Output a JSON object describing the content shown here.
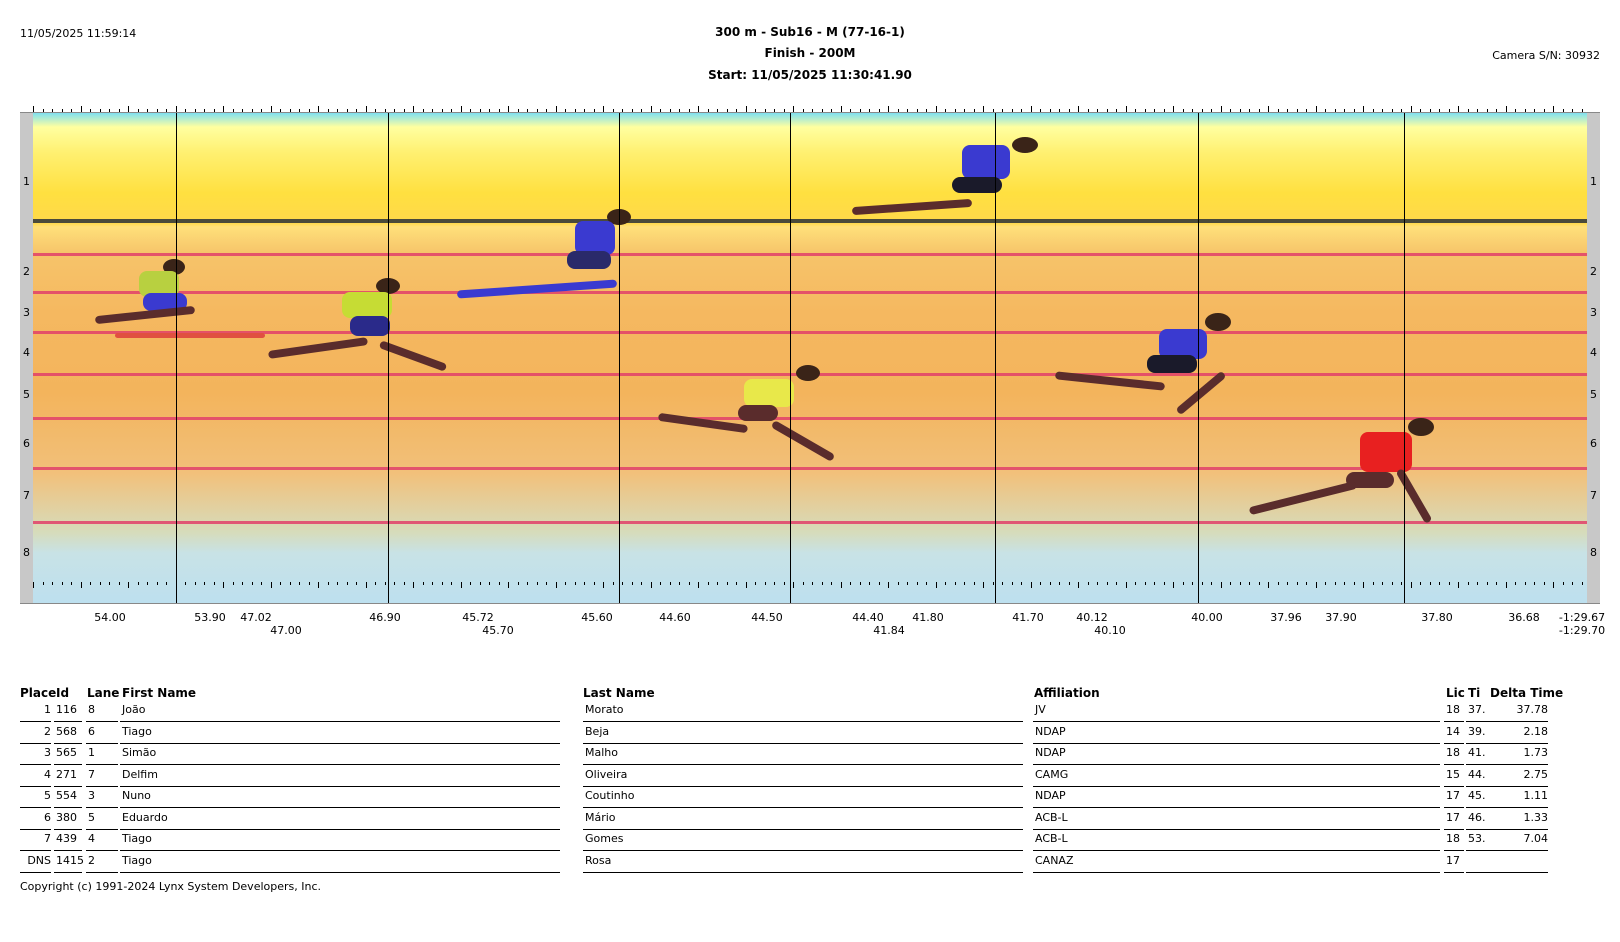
{
  "header": {
    "timestamp": "11/05/2025 11:59:14",
    "event_title": "300 m - Sub16 - M (77-16-1)",
    "finish_label": "Finish - 200M",
    "start_label": "Start: 11/05/2025 11:30:41.90",
    "camera": "Camera S/N: 30932"
  },
  "photo": {
    "lanes": [
      "1",
      "2",
      "3",
      "4",
      "5",
      "6",
      "7",
      "8"
    ],
    "time_labels_row1": [
      "54.00",
      "53.90",
      "47.02",
      "46.90",
      "45.72",
      "45.60",
      "44.60",
      "44.50",
      "44.40",
      "41.80",
      "41.70",
      "40.12",
      "40.00",
      "37.96",
      "37.90",
      "37.80",
      "36.68",
      "-1:29.67"
    ],
    "time_labels_row2": [
      "47.00",
      "45.70",
      "41.84",
      "40.10",
      "-1:29.70"
    ]
  },
  "results": {
    "columns": [
      "Place",
      "Id",
      "Lane",
      "First Name",
      "Last Name",
      "Affiliation",
      "Lic",
      "Ti",
      "Delta Time"
    ],
    "rows": [
      {
        "place": "1",
        "id": "116",
        "lane": "8",
        "first": "João",
        "last": "Morato",
        "aff": "JV",
        "lic": "18",
        "ti": "37.",
        "delta": "37.78"
      },
      {
        "place": "2",
        "id": "568",
        "lane": "6",
        "first": "Tiago",
        "last": "Beja",
        "aff": "NDAP",
        "lic": "14",
        "ti": "39.",
        "delta": "2.18"
      },
      {
        "place": "3",
        "id": "565",
        "lane": "1",
        "first": "Simão",
        "last": "Malho",
        "aff": "NDAP",
        "lic": "18",
        "ti": "41.",
        "delta": "1.73"
      },
      {
        "place": "4",
        "id": "271",
        "lane": "7",
        "first": "Delfim",
        "last": "Oliveira",
        "aff": "CAMG",
        "lic": "15",
        "ti": "44.",
        "delta": "2.75"
      },
      {
        "place": "5",
        "id": "554",
        "lane": "3",
        "first": "Nuno",
        "last": "Coutinho",
        "aff": "NDAP",
        "lic": "17",
        "ti": "45.",
        "delta": "1.11"
      },
      {
        "place": "6",
        "id": "380",
        "lane": "5",
        "first": "Eduardo",
        "last": "Mário",
        "aff": "ACB-L",
        "lic": "17",
        "ti": "46.",
        "delta": "1.33"
      },
      {
        "place": "7",
        "id": "439",
        "lane": "4",
        "first": "Tiago",
        "last": "Gomes",
        "aff": "ACB-L",
        "lic": "18",
        "ti": "53.",
        "delta": "7.04"
      },
      {
        "place": "DNS",
        "id": "1415",
        "lane": "2",
        "first": "Tiago",
        "last": "Rosa",
        "aff": "CANAZ",
        "lic": "17",
        "ti": "",
        "delta": ""
      }
    ]
  },
  "footer": {
    "copyright": "Copyright (c) 1991-2024 Lynx System Developers, Inc."
  },
  "colors": {
    "lane_line": "#e0406a",
    "jersey_blue": "#3a3ad0",
    "jersey_yellow": "#d8e040",
    "jersey_red": "#e82020"
  }
}
